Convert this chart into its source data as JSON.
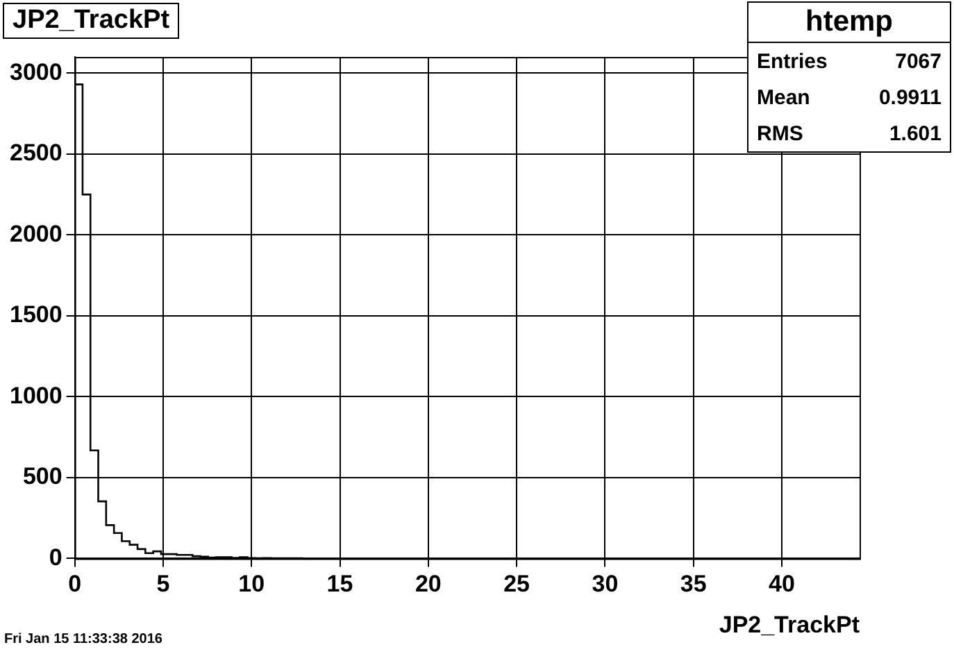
{
  "chart_data": {
    "type": "histogram",
    "title": "JP2_TrackPt",
    "xlabel": "JP2_TrackPt",
    "bins": [
      0,
      0.444,
      0.888,
      1.332,
      1.776,
      2.22,
      2.664,
      3.108,
      3.552,
      3.996,
      4.44,
      4.884,
      5.328,
      5.772,
      6.216,
      6.66,
      7.104,
      7.548,
      7.992,
      8.436,
      8.88,
      9.324,
      9.768,
      10.212,
      10.656,
      11.1,
      11.544,
      11.988,
      12.432,
      12.876,
      13.32,
      13.764,
      14.208,
      14.652,
      15.096,
      15.54,
      15.984,
      16.428,
      16.872,
      17.316,
      17.76,
      18.204,
      18.648,
      19.092,
      19.536,
      19.98,
      20.424,
      20.868,
      21.312,
      21.756,
      22.2,
      22.644,
      23.088,
      23.532,
      23.976,
      24.42,
      24.864,
      25.308,
      25.752,
      26.196,
      26.64,
      27.084,
      27.528,
      27.972,
      28.416,
      28.86,
      29.304,
      29.748,
      30.192,
      30.636,
      31.08,
      31.524,
      31.968,
      32.412,
      32.856,
      33.3,
      33.744,
      34.188,
      34.632,
      35.076,
      35.52,
      35.964,
      36.408,
      36.852,
      37.296,
      37.74,
      38.184,
      38.628,
      39.072,
      39.516,
      39.96,
      40.404,
      40.848,
      41.292,
      41.736,
      42.18,
      42.624,
      43.068,
      43.512,
      43.956,
      44.4
    ],
    "values": [
      2930,
      2250,
      668,
      353,
      206,
      157,
      107,
      85,
      58,
      33,
      44,
      27,
      27,
      22,
      22,
      14,
      11,
      6,
      8,
      8,
      4,
      8,
      3,
      2,
      3,
      1,
      2,
      1,
      1,
      0,
      0,
      0,
      0,
      0,
      0,
      0,
      0,
      0,
      0,
      0,
      0,
      0,
      0,
      0,
      0,
      0,
      0,
      0,
      0,
      0,
      0,
      0,
      0,
      0,
      0,
      0,
      0,
      0,
      0,
      0,
      0,
      0,
      0,
      0,
      0,
      0,
      0,
      0,
      0,
      0,
      0,
      0,
      0,
      0,
      0,
      0,
      0,
      0,
      0,
      0,
      0,
      0,
      0,
      0,
      0,
      0,
      0,
      0,
      0,
      0,
      0,
      0,
      0,
      0,
      0,
      0,
      0,
      0,
      0,
      0
    ],
    "color": "#000000",
    "xlim": [
      0,
      44.4
    ],
    "xticks": [
      0,
      5,
      10,
      15,
      20,
      25,
      30,
      35,
      40
    ],
    "ylim": [
      0,
      3100
    ],
    "yticks": [
      0,
      500,
      1000,
      1500,
      2000,
      2500,
      3000
    ],
    "grid": true,
    "annotations": [
      "htemp",
      "Entries",
      "7067",
      "Mean",
      "0.9911",
      "RMS",
      "1.601",
      "Fri Jan 15 11:33:38 2016"
    ]
  }
}
